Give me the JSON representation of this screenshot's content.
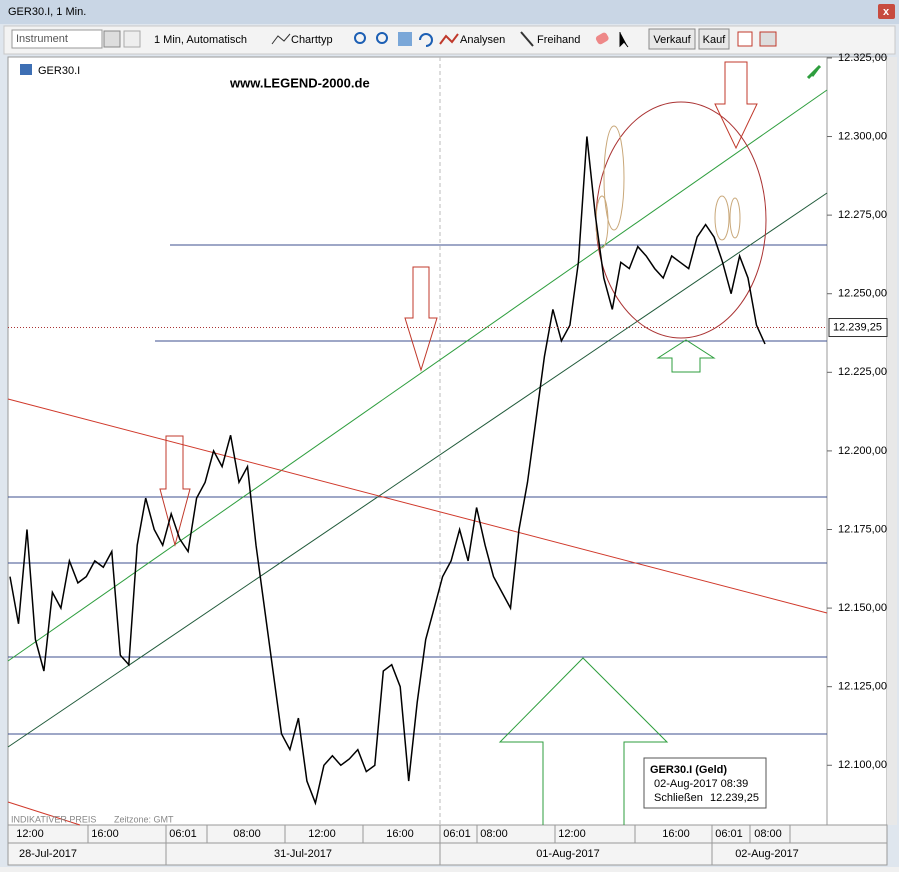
{
  "window": {
    "title": "GER30.I, 1 Min."
  },
  "toolbar": {
    "instrument_placeholder": "Instrument",
    "interval": "1 Min, Automatisch",
    "chart_type": "Charttyp",
    "analyses": "Analysen",
    "freehand": "Freihand",
    "sell": "Verkauf",
    "buy": "Kauf"
  },
  "chart_data": {
    "type": "line",
    "symbol": "GER30.I",
    "watermark": "www.LEGEND-2000.de",
    "color": "#000000",
    "values": [
      12160,
      12145,
      12175,
      12140,
      12130,
      12155,
      12150,
      12165,
      12158,
      12160,
      12165,
      12163,
      12168,
      12135,
      12132,
      12170,
      12185,
      12175,
      12170,
      12180,
      12172,
      12168,
      12185,
      12190,
      12200,
      12195,
      12205,
      12190,
      12195,
      12170,
      12150,
      12130,
      12110,
      12105,
      12115,
      12095,
      12088,
      12100,
      12103,
      12100,
      12102,
      12105,
      12098,
      12100,
      12130,
      12132,
      12125,
      12095,
      12120,
      12140,
      12150,
      12160,
      12165,
      12175,
      12165,
      12182,
      12170,
      12160,
      12155,
      12150,
      12175,
      12190,
      12210,
      12230,
      12245,
      12235,
      12240,
      12260,
      12300,
      12275,
      12255,
      12245,
      12260,
      12258,
      12265,
      12262,
      12258,
      12255,
      12262,
      12260,
      12258,
      12268,
      12272,
      12268,
      12260,
      12250,
      12262,
      12255,
      12240,
      12234
    ],
    "ylim": [
      12081,
      12325.3
    ],
    "yticks": [
      {
        "value": 12100,
        "label": "12.100,00"
      },
      {
        "value": 12125,
        "label": "12.125,00"
      },
      {
        "value": 12150,
        "label": "12.150,00"
      },
      {
        "value": 12175,
        "label": "12.175,00"
      },
      {
        "value": 12200,
        "label": "12.200,00"
      },
      {
        "value": 12225,
        "label": "12.225,00"
      },
      {
        "value": 12250,
        "label": "12.250,00"
      },
      {
        "value": 12275,
        "label": "12.275,00"
      },
      {
        "value": 12300,
        "label": "12.300,00"
      },
      {
        "value": 12325,
        "label": "12.325,00"
      }
    ],
    "x_tick_labels": [
      "12:00",
      "16:00",
      "06:01",
      "08:00",
      "12:00",
      "16:00",
      "06:01",
      "08:00",
      "12:00",
      "16:00",
      "06:01",
      "08:00"
    ],
    "date_labels": [
      "28-Jul-2017",
      "31-Jul-2017",
      "01-Aug-2017",
      "02-Aug-2017"
    ],
    "last_price": {
      "value": 12239.25,
      "label": "12.239,25"
    },
    "footer": "INDIKATIVER PREIS",
    "timezone": "Zeitzone: GMT",
    "info": {
      "title": "GER30.I (Geld)",
      "date": "02-Aug-2017 08:39",
      "close_label": "Schließen",
      "close_value": "12.239,25"
    }
  }
}
